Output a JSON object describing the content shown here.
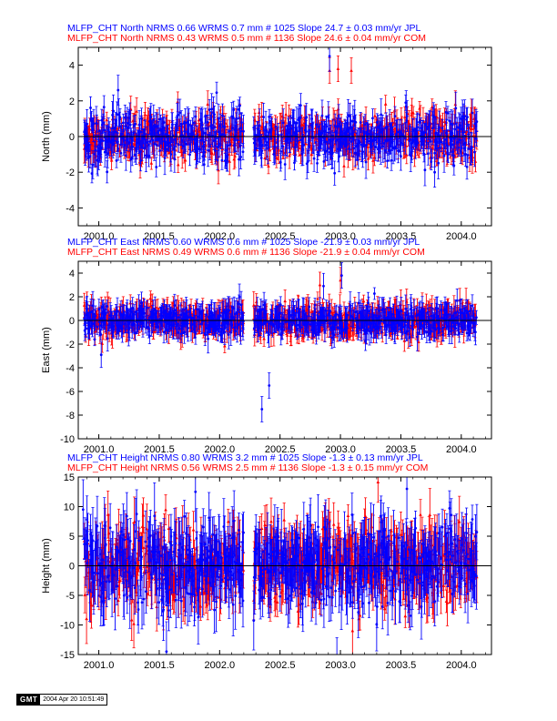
{
  "chart_data": [
    {
      "type": "scatter",
      "title_lines": [
        {
          "text": "MLFP_CHT North NRMS 0.66 WRMS  0.7 mm # 1025 Slope  24.7 ±  0.03 mm/yr JPL",
          "color": "#0000ff"
        },
        {
          "text": "MLFP_CHT North NRMS 0.43 WRMS  0.5 mm # 1136 Slope  24.6 ±  0.04 mm/yr COM",
          "color": "#ff0000"
        }
      ],
      "xlabel": "",
      "ylabel": "North (mm)",
      "xlim": [
        2000.83,
        2004.25
      ],
      "ylim": [
        -5,
        5
      ],
      "xticks": [
        "2001.0",
        "2001.5",
        "2002.0",
        "2002.5",
        "2003.0",
        "2003.5",
        "2004.0"
      ],
      "yticks": [
        "4",
        "2",
        "0",
        "-2",
        "-4"
      ],
      "zero_line": true,
      "series": [
        {
          "color": "#ff0000",
          "marker": "triangle",
          "scatter": 0.65,
          "err": 0.6,
          "outliers": [
            {
              "x": 2002.98,
              "y": 3.8
            },
            {
              "x": 2002.91,
              "y": 3.7
            },
            {
              "x": 2003.09,
              "y": 3.7
            }
          ]
        },
        {
          "color": "#0000ff",
          "marker": "circle",
          "scatter": 0.7,
          "err": 0.7,
          "outliers": [
            {
              "x": 2002.91,
              "y": 4.5
            },
            {
              "x": 2001.16,
              "y": 2.6
            },
            {
              "x": 2003.78,
              "y": -2.0
            }
          ]
        }
      ]
    },
    {
      "type": "scatter",
      "title_lines": [
        {
          "text": "MLFP_CHT East NRMS 0.60 WRMS  0.6 mm # 1025 Slope  -21.9 ±  0.03 mm/yr JPL",
          "color": "#0000ff"
        },
        {
          "text": "MLFP_CHT East NRMS 0.49 WRMS  0.6 mm # 1136 Slope  -21.9 ±  0.04 mm/yr COM",
          "color": "#ff0000"
        }
      ],
      "xlabel": "",
      "ylabel": "East (mm)",
      "xlim": [
        2000.83,
        2004.25
      ],
      "ylim": [
        -10,
        5
      ],
      "xticks": [
        "2001.0",
        "2001.5",
        "2002.0",
        "2002.5",
        "2003.0",
        "2003.5",
        "2004.0"
      ],
      "yticks": [
        "4",
        "2",
        "0",
        "-2",
        "-4",
        "-6",
        "-8",
        "-10"
      ],
      "zero_line": true,
      "series": [
        {
          "color": "#ff0000",
          "marker": "triangle",
          "scatter": 0.65,
          "err": 0.9,
          "outliers": [
            {
              "x": 2002.83,
              "y": 3.0
            },
            {
              "x": 2003.0,
              "y": 3.4
            }
          ]
        },
        {
          "color": "#0000ff",
          "marker": "circle",
          "scatter": 0.6,
          "err": 0.9,
          "outliers": [
            {
              "x": 2002.35,
              "y": -7.5
            },
            {
              "x": 2002.41,
              "y": -5.5
            },
            {
              "x": 2003.01,
              "y": 3.8
            },
            {
              "x": 2002.86,
              "y": 2.9
            },
            {
              "x": 2001.02,
              "y": -2.9
            }
          ]
        }
      ]
    },
    {
      "type": "scatter",
      "title_lines": [
        {
          "text": "MLFP_CHT Height NRMS 0.80 WRMS  3.2 mm # 1025 Slope  -1.3 ±  0.13 mm/yr JPL",
          "color": "#0000ff"
        },
        {
          "text": "MLFP_CHT Height NRMS 0.56 WRMS  2.5 mm # 1136 Slope  -1.3 ±  0.15 mm/yr COM",
          "color": "#ff0000"
        }
      ],
      "xlabel": "",
      "ylabel": "Height (mm)",
      "xlim": [
        2000.83,
        2004.25
      ],
      "ylim": [
        -15,
        15
      ],
      "xticks": [
        "2001.0",
        "2001.5",
        "2002.0",
        "2002.5",
        "2003.0",
        "2003.5",
        "2004.0"
      ],
      "yticks": [
        "15",
        "10",
        "5",
        "0",
        "-5",
        "-10",
        "-15"
      ],
      "zero_line": true,
      "series": [
        {
          "color": "#ff0000",
          "marker": "triangle",
          "scatter": 3.3,
          "err": 3.4,
          "outliers": [
            {
              "x": 2003.1,
              "y": -11.0
            },
            {
              "x": 2001.29,
              "y": -9.8
            }
          ]
        },
        {
          "color": "#0000ff",
          "marker": "circle",
          "scatter": 3.4,
          "err": 4.2,
          "outliers": [
            {
              "x": 2001.56,
              "y": -14.5
            },
            {
              "x": 2001.8,
              "y": 12.5
            },
            {
              "x": 2003.55,
              "y": 13.0
            },
            {
              "x": 2000.87,
              "y": 9.5
            }
          ]
        }
      ]
    }
  ],
  "footer": {
    "logo_text": "GMT",
    "timestamp": "2004 Apr 20 10:51:49"
  }
}
